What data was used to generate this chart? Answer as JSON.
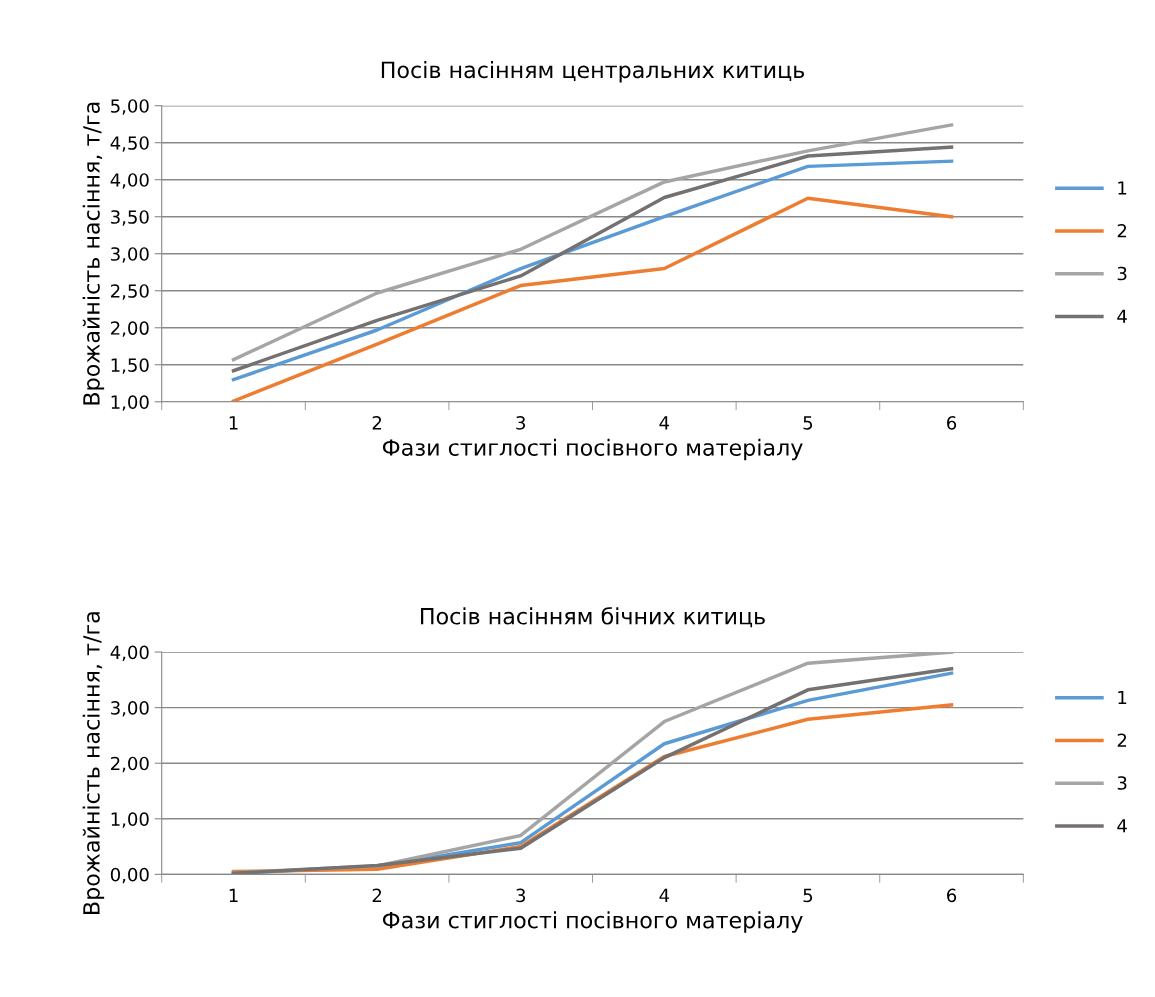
{
  "chart_data": [
    {
      "type": "line",
      "title": "Посів насінням центральних китиць",
      "xlabel": "Фази стиглості посівного матеріалу",
      "ylabel": "Врожайність насіння, т/га",
      "categories": [
        "1",
        "2",
        "3",
        "4",
        "5",
        "6"
      ],
      "series": [
        {
          "name": "1",
          "color": "#5b9bd5",
          "values": [
            1.3,
            1.97,
            2.8,
            3.5,
            4.18,
            4.25
          ]
        },
        {
          "name": "2",
          "color": "#ed7d31",
          "values": [
            1.01,
            1.78,
            2.57,
            2.8,
            3.75,
            3.5
          ]
        },
        {
          "name": "3",
          "color": "#a5a5a5",
          "values": [
            1.57,
            2.47,
            3.06,
            3.97,
            4.39,
            4.74
          ]
        },
        {
          "name": "4",
          "color": "#767171",
          "values": [
            1.42,
            2.1,
            2.7,
            3.76,
            4.32,
            4.44
          ]
        }
      ],
      "ylim": [
        1,
        5
      ],
      "yticks": [
        {
          "value": 1,
          "label": "1,00"
        },
        {
          "value": 1.5,
          "label": "1,50"
        },
        {
          "value": 2,
          "label": "2,00"
        },
        {
          "value": 2.5,
          "label": "2,50"
        },
        {
          "value": 3,
          "label": "3,00"
        },
        {
          "value": 3.5,
          "label": "3,50"
        },
        {
          "value": 4,
          "label": "4,00"
        },
        {
          "value": 4.5,
          "label": "4,50"
        },
        {
          "value": 5,
          "label": "5,00"
        }
      ],
      "grid": "y",
      "legend": "right",
      "marker": "none",
      "line_style": "solid"
    },
    {
      "type": "line",
      "title": "Посів насінням бічних китиць",
      "xlabel": "Фази стиглості посівного матеріалу",
      "ylabel": "Врожайність насіння, т/га",
      "categories": [
        "1",
        "2",
        "3",
        "4",
        "5",
        "6"
      ],
      "series": [
        {
          "name": "1",
          "color": "#5b9bd5",
          "values": [
            0.02,
            0.14,
            0.57,
            2.35,
            3.13,
            3.62
          ]
        },
        {
          "name": "2",
          "color": "#ed7d31",
          "values": [
            0.05,
            0.09,
            0.5,
            2.12,
            2.79,
            3.05
          ]
        },
        {
          "name": "3",
          "color": "#a5a5a5",
          "values": [
            0.03,
            0.15,
            0.7,
            2.75,
            3.8,
            4.0
          ]
        },
        {
          "name": "4",
          "color": "#767171",
          "values": [
            0.02,
            0.16,
            0.47,
            2.1,
            3.32,
            3.7
          ]
        }
      ],
      "ylim": [
        0,
        4
      ],
      "yticks": [
        {
          "value": 0,
          "label": "0,00"
        },
        {
          "value": 1,
          "label": "1,00"
        },
        {
          "value": 2,
          "label": "2,00"
        },
        {
          "value": 3,
          "label": "3,00"
        },
        {
          "value": 4,
          "label": "4,00"
        }
      ],
      "grid": "y",
      "legend": "right",
      "marker": "none",
      "line_style": "solid"
    }
  ]
}
